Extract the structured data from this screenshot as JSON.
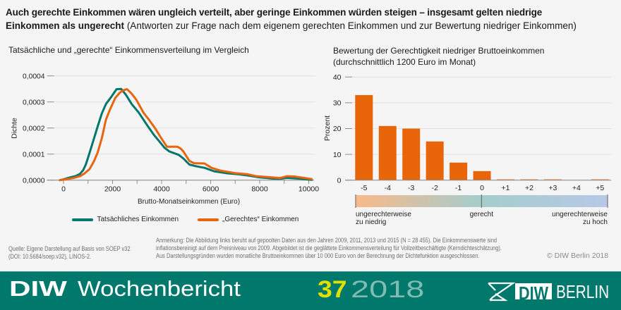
{
  "header": {
    "title_line1": "Auch gerechte Einkommen wären ungleich verteilt, aber geringe Einkommen würden steigen – insgesamt gelten niedrige",
    "title_line2_bold": "Einkommen als ungerecht",
    "title_line2_regular": "(Antworten zur Frage nach dem eigenem gerechten Einkommen und zur Bewertung niedriger Einkommen)"
  },
  "chart_data": [
    {
      "type": "line",
      "title": "Tatsächliche und „gerechte“ Einkommensverteilung im Vergleich",
      "xlabel": "Brutto-Monatseinkommen (Euro)",
      "ylabel": "Dichte",
      "xlim": [
        -670,
        10200
      ],
      "ylim": [
        0,
        0.0004
      ],
      "grid": true,
      "legend": "bottom",
      "xticks": [
        {
          "value": 0,
          "label": "0"
        },
        {
          "value": 2000,
          "label": "2000"
        },
        {
          "value": 4000,
          "label": "4000"
        },
        {
          "value": 6000,
          "label": "6000"
        },
        {
          "value": 8000,
          "label": "8000"
        },
        {
          "value": 10000,
          "label": "10000"
        }
      ],
      "minor_tick_step": 1000,
      "yticks": [
        {
          "value": 0,
          "label": "0,0000"
        },
        {
          "value": 0.0001,
          "label": "0,0001"
        },
        {
          "value": 0.0002,
          "label": "0,0002"
        },
        {
          "value": 0.0003,
          "label": "0,0003"
        },
        {
          "value": 0.0004,
          "label": "0,0004"
        }
      ],
      "series": [
        {
          "name": "Tatsächliches Einkommen",
          "color": "#00776a",
          "points": [
            [
              -150,
              0
            ],
            [
              0,
              3e-06
            ],
            [
              290,
              1.1e-05
            ],
            [
              500,
              1.6e-05
            ],
            [
              670,
              2.4e-05
            ],
            [
              800,
              3.8e-05
            ],
            [
              910,
              6e-05
            ],
            [
              1030,
              9.5e-05
            ],
            [
              1150,
              0.000132
            ],
            [
              1390,
              0.000205
            ],
            [
              1560,
              0.000255
            ],
            [
              1730,
              0.000292
            ],
            [
              1950,
              0.00032
            ],
            [
              2160,
              0.000349
            ],
            [
              2350,
              0.00035
            ],
            [
              2540,
              0.000328
            ],
            [
              2780,
              0.000292
            ],
            [
              3070,
              0.000259
            ],
            [
              3450,
              0.000205
            ],
            [
              3700,
              0.000172
            ],
            [
              3930,
              0.000146
            ],
            [
              4120,
              0.000124
            ],
            [
              4320,
              0.00011
            ],
            [
              4700,
              9.7e-05
            ],
            [
              4890,
              8.3e-05
            ],
            [
              5130,
              6e-05
            ],
            [
              5370,
              5.4e-05
            ],
            [
              5760,
              4.7e-05
            ],
            [
              6140,
              3.4e-05
            ],
            [
              6620,
              2.7e-05
            ],
            [
              7100,
              2.3e-05
            ],
            [
              7580,
              1.7e-05
            ],
            [
              7960,
              1.1e-05
            ],
            [
              8540,
              6e-06
            ],
            [
              8830,
              5e-06
            ],
            [
              9110,
              9e-06
            ],
            [
              9590,
              6e-06
            ],
            [
              10120,
              1e-06
            ]
          ]
        },
        {
          "name": "„Gerechtes“ Einkommen",
          "color": "#e8650f",
          "points": [
            [
              -150,
              0
            ],
            [
              0,
              2e-06
            ],
            [
              400,
              8e-06
            ],
            [
              670,
              1.5e-05
            ],
            [
              850,
              2.5e-05
            ],
            [
              1055,
              4.2e-05
            ],
            [
              1230,
              7e-05
            ],
            [
              1390,
              0.000105
            ],
            [
              1560,
              0.00016
            ],
            [
              1730,
              0.000232
            ],
            [
              1900,
              0.000272
            ],
            [
              2110,
              0.000315
            ],
            [
              2300,
              0.000336
            ],
            [
              2450,
              0.000345
            ],
            [
              2590,
              0.000349
            ],
            [
              2780,
              0.000332
            ],
            [
              2970,
              0.000308
            ],
            [
              3120,
              0.000283
            ],
            [
              3260,
              0.000259
            ],
            [
              3500,
              0.00023
            ],
            [
              3740,
              0.000198
            ],
            [
              3980,
              0.000162
            ],
            [
              4220,
              0.000128
            ],
            [
              4650,
              0.000128
            ],
            [
              4790,
              0.00012
            ],
            [
              4890,
              0.00011
            ],
            [
              5130,
              7.4e-05
            ],
            [
              5320,
              6.5e-05
            ],
            [
              5750,
              6.4e-05
            ],
            [
              6040,
              4.7e-05
            ],
            [
              6430,
              3.6e-05
            ],
            [
              7000,
              2.7e-05
            ],
            [
              7480,
              2.3e-05
            ],
            [
              7870,
              1.5e-05
            ],
            [
              8440,
              1.1e-05
            ],
            [
              8830,
              8e-06
            ],
            [
              9110,
              1.5e-05
            ],
            [
              9400,
              1.4e-05
            ],
            [
              9780,
              9e-06
            ],
            [
              10120,
              4e-06
            ]
          ]
        }
      ]
    },
    {
      "type": "bar",
      "title": "Bewertung der Gerechtigkeit niedriger Bruttoeinkommen",
      "subtitle": "(durchschnittlich 1200 Euro im Monat)",
      "xlabel": "",
      "ylabel": "Prozent",
      "categories": [
        "-5",
        "-4",
        "-3",
        "-2",
        "-1",
        "0",
        "+1",
        "+2",
        "+3",
        "+4",
        "+5"
      ],
      "values": [
        33,
        21,
        20,
        15,
        6.8,
        3.5,
        0.3,
        0.3,
        0.3,
        0,
        0.3
      ],
      "ylim": [
        0,
        40
      ],
      "grid": true,
      "color": "#e8650a",
      "yticks": [
        {
          "value": 0,
          "label": "0"
        },
        {
          "value": 10,
          "label": "10"
        },
        {
          "value": 20,
          "label": "20"
        },
        {
          "value": 30,
          "label": "30"
        },
        {
          "value": 40,
          "label": "40"
        }
      ],
      "scale_legend": {
        "left_line1": "ungerechterweise",
        "left_line2": "zu niedrig",
        "center": "gerecht",
        "right_line1": "ungerechterweise",
        "right_line2": "zu hoch",
        "gradient": [
          "#f9b98a",
          "#a5cdcc",
          "#b7c8e6"
        ]
      }
    }
  ],
  "notes": {
    "source_line1": "Quelle: Eigene Darstellung auf Basis von SOEP v32",
    "source_line2": "(DOI: 10.5684/soep.v32), LINOS-2.",
    "annotation_line1": "Anmerkung: Die Abbildung links beruht auf gepoolten Daten aus den Jahren 2009, 2011, 2013 und 2015 (N = 28 455). Die Einkommenswerte sind",
    "annotation_line2": "inflationsbereinigt auf dem Preisniveau von 2009. Abgebildet ist die geglättete Einkommensverteilung für Vollzeitbeschäftigte (Kerndichteschätzung).",
    "annotation_line3": "Aus Darstellungsgründen wurden monatliche Bruttoeinkommen über 10 000 Euro von der Berechnung der Dichtefunktion ausgeschlossen.",
    "copyright": "© DIW Berlin 2018"
  },
  "footer": {
    "brand_bold": "DIW",
    "brand_light": "Wochenbericht",
    "issue_number": "37",
    "issue_year": "2018",
    "logo_box_text": "DIW",
    "logo_text": "BERLIN"
  },
  "colors": {
    "background": "#f5f5f5",
    "footer_band": "#00786b",
    "issue_number": "#dde000",
    "issue_year": "#7fbcb3"
  }
}
